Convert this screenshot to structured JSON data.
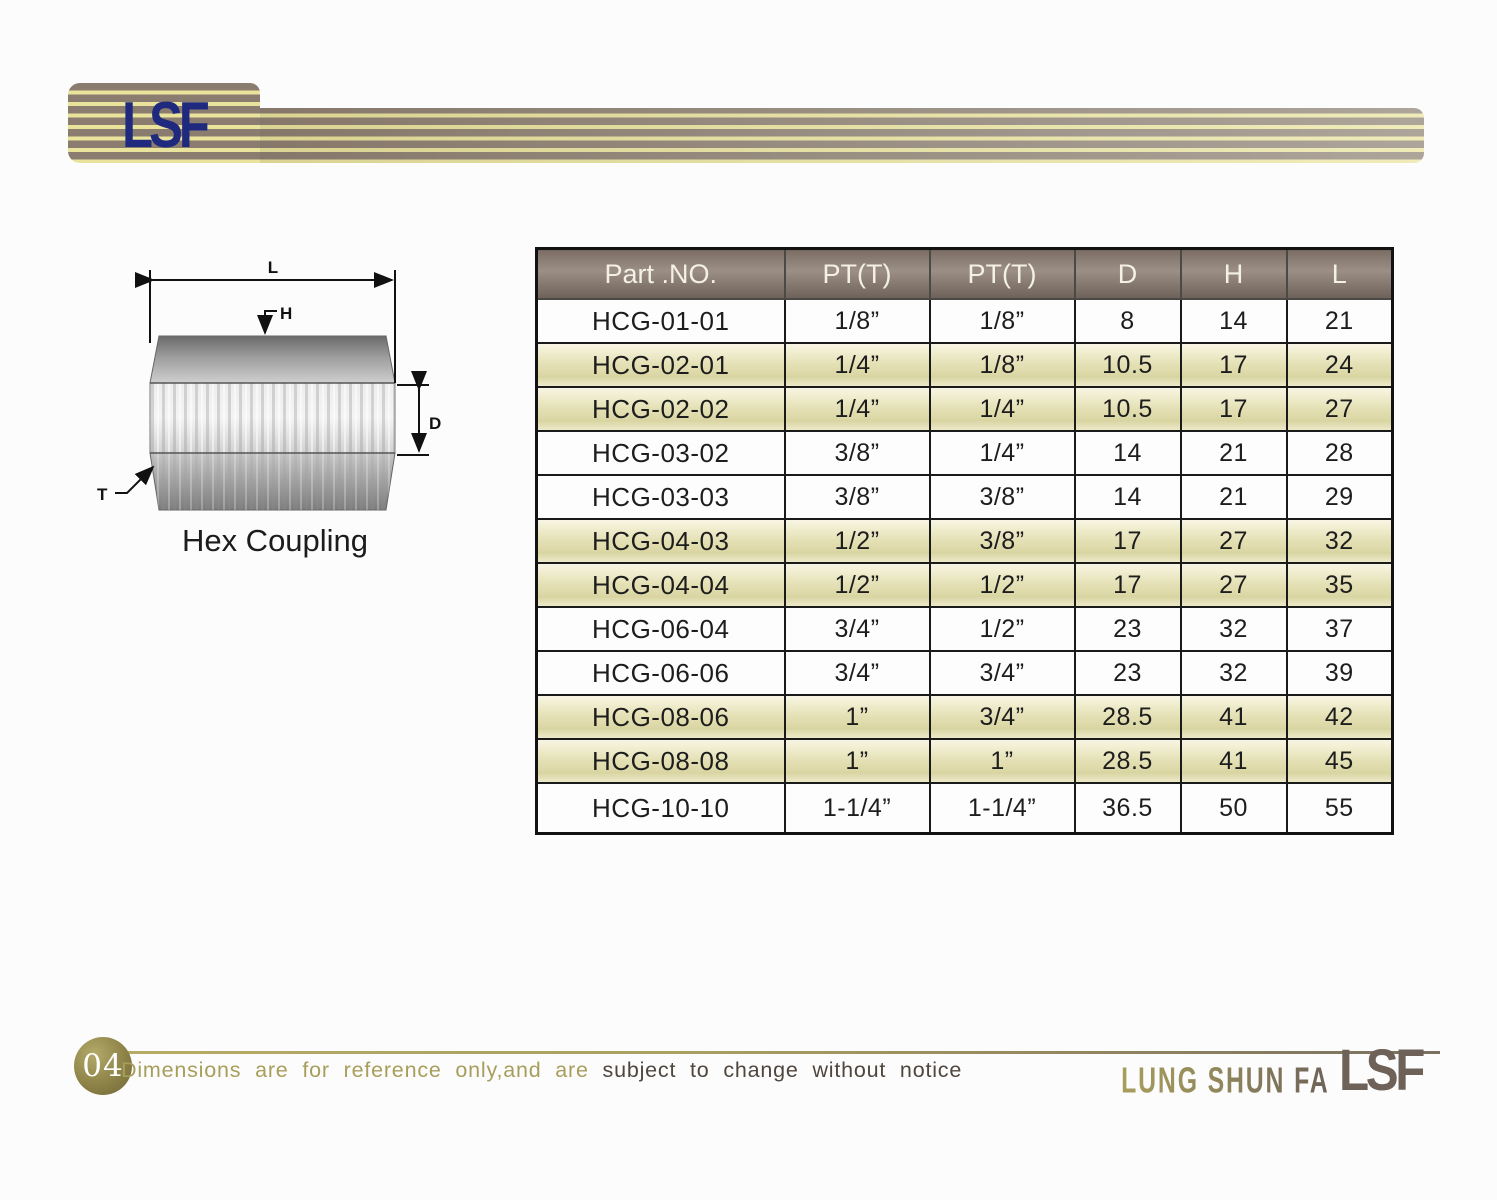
{
  "brand": {
    "logo_text": "LSF",
    "company_name": "LUNG SHUN FA",
    "navy": "#1f2a7e",
    "stripe_gray": "#8a7d6f",
    "stripe_yellow": "#e9e39b"
  },
  "drawing": {
    "caption": "Hex Coupling",
    "dim_l": "L",
    "dim_h": "H",
    "dim_d": "D",
    "dim_t": "T"
  },
  "table": {
    "columns": [
      "Part .NO.",
      "PT(T)",
      "PT(T)",
      "D",
      "H",
      "L"
    ],
    "rows": [
      [
        "HCG-01-01",
        "1/8”",
        "1/8”",
        "8",
        "14",
        "21"
      ],
      [
        "HCG-02-01",
        "1/4”",
        "1/8”",
        "10.5",
        "17",
        "24"
      ],
      [
        "HCG-02-02",
        "1/4”",
        "1/4”",
        "10.5",
        "17",
        "27"
      ],
      [
        "HCG-03-02",
        "3/8”",
        "1/4”",
        "14",
        "21",
        "28"
      ],
      [
        "HCG-03-03",
        "3/8”",
        "3/8”",
        "14",
        "21",
        "29"
      ],
      [
        "HCG-04-03",
        "1/2”",
        "3/8”",
        "17",
        "27",
        "32"
      ],
      [
        "HCG-04-04",
        "1/2”",
        "1/2”",
        "17",
        "27",
        "35"
      ],
      [
        "HCG-06-04",
        "3/4”",
        "1/2”",
        "23",
        "32",
        "37"
      ],
      [
        "HCG-06-06",
        "3/4”",
        "3/4”",
        "23",
        "32",
        "39"
      ],
      [
        "HCG-08-06",
        "1”",
        "3/4”",
        "28.5",
        "41",
        "42"
      ],
      [
        "HCG-08-08",
        "1”",
        "1”",
        "28.5",
        "41",
        "45"
      ],
      [
        "HCG-10-10",
        "1-1/4”",
        "1-1/4”",
        "36.5",
        "50",
        "55"
      ]
    ],
    "header_bg": "#84766d",
    "tint_row_color": "#e6e2b8"
  },
  "footer": {
    "page_number": "04",
    "disclaimer_highlight": "Dimensions are for reference only,and are ",
    "disclaimer_rest": "subject to change without notice",
    "accent_olive": "#a89e5b",
    "accent_brown": "#6e6158"
  }
}
